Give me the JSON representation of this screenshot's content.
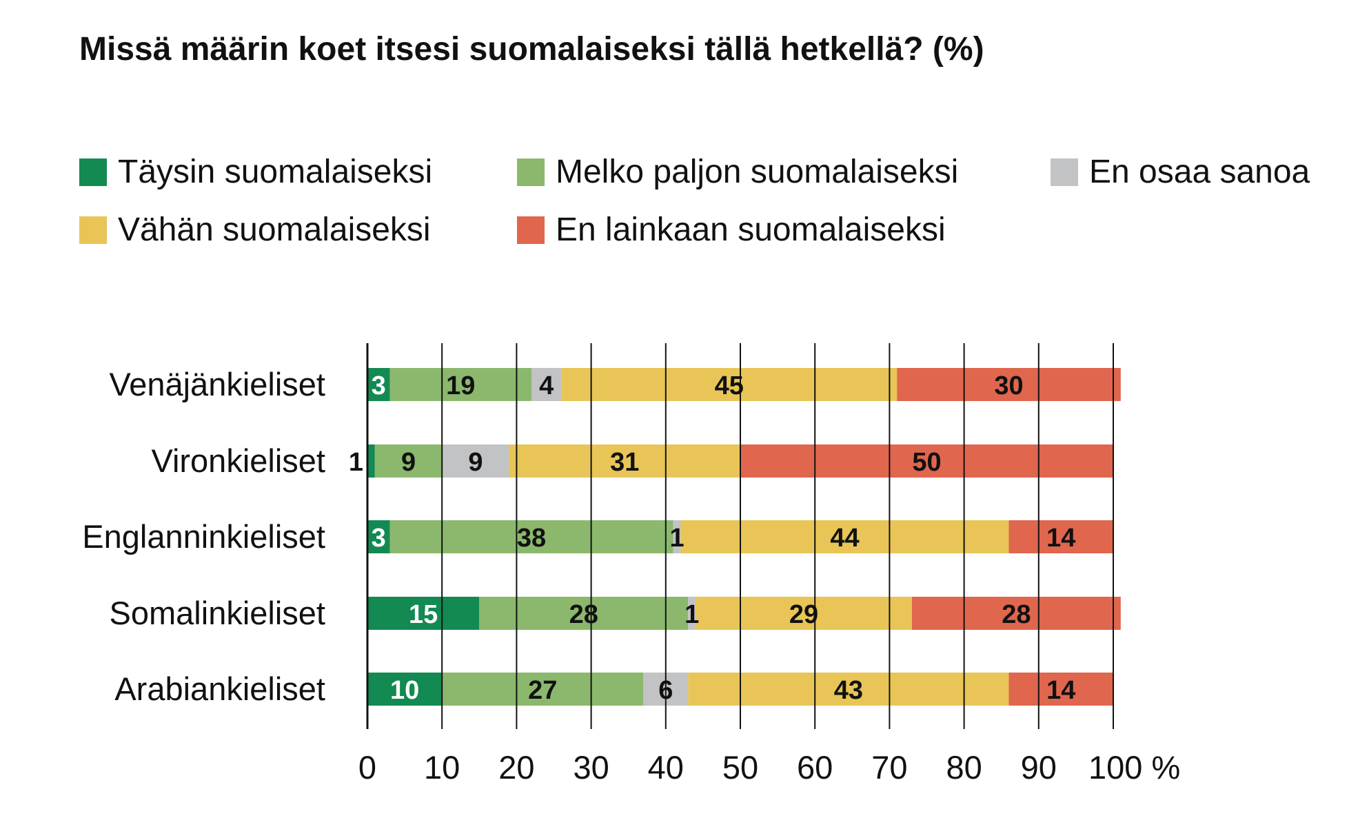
{
  "chart_data": {
    "type": "bar",
    "orientation": "horizontal",
    "stacked": true,
    "title": "Missä määrin koet itsesi suomalaiseksi tällä hetkellä? (%)",
    "categories": [
      "Venäjänkieliset",
      "Vironkieliset",
      "Englanninkieliset",
      "Somalinkieliset",
      "Arabiankieliset"
    ],
    "series": [
      {
        "name": "Täysin suomalaiseksi",
        "color": "#128a52",
        "values": [
          3,
          1,
          3,
          15,
          10
        ]
      },
      {
        "name": "Melko paljon suomalaiseksi",
        "color": "#8bb86d",
        "values": [
          19,
          9,
          38,
          28,
          27
        ]
      },
      {
        "name": "En osaa sanoa",
        "color": "#c2c3c5",
        "values": [
          4,
          9,
          1,
          1,
          6
        ]
      },
      {
        "name": "Vähän suomalaiseksi",
        "color": "#e8c556",
        "values": [
          45,
          31,
          44,
          29,
          43
        ]
      },
      {
        "name": "En lainkaan suomalaiseksi",
        "color": "#e0664e",
        "values": [
          30,
          50,
          14,
          28,
          14
        ]
      }
    ],
    "legend_order": [
      0,
      1,
      2,
      3,
      4
    ],
    "xlim": [
      0,
      100
    ],
    "xticks": [
      "0",
      "10",
      "20",
      "30",
      "40",
      "50",
      "60",
      "70",
      "80",
      "90",
      "100 %"
    ],
    "grid": "vertical",
    "legend_position": "top"
  }
}
